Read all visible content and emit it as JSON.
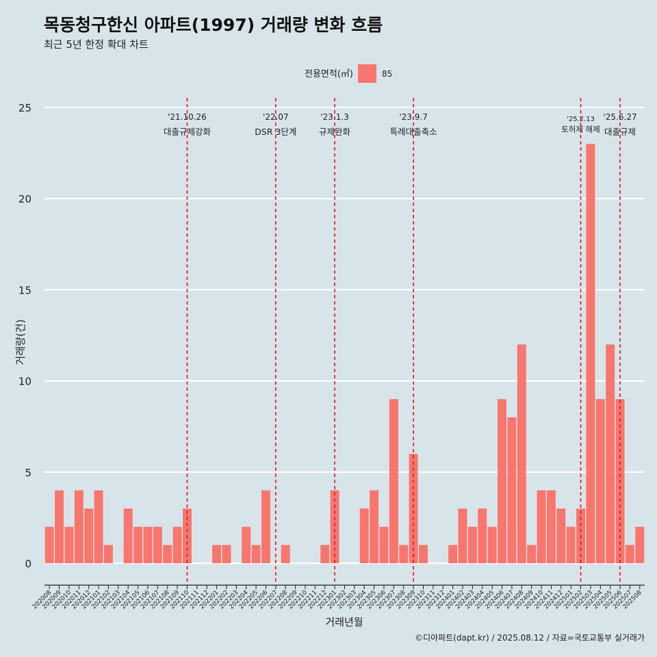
{
  "chart_data": {
    "type": "bar",
    "title": "목동청구한신 아파트(1997) 거래량 변화 흐름",
    "subtitle": "최근 5년 한정 확대 차트",
    "xlabel": "거래년월",
    "ylabel": "거래량(건)",
    "ylim": [
      0,
      25
    ],
    "yticks": [
      0,
      5,
      10,
      15,
      20,
      25
    ],
    "grid": true,
    "legend": {
      "title": "전용면적(㎡)",
      "placement": "top-center",
      "entries": [
        {
          "label": "85",
          "color": "#f8766d"
        }
      ]
    },
    "categories": [
      "202008",
      "202009",
      "202010",
      "202011",
      "202012",
      "202101",
      "202102",
      "202103",
      "202104",
      "202105",
      "202106",
      "202107",
      "202108",
      "202109",
      "202110",
      "202111",
      "202112",
      "202201",
      "202202",
      "202203",
      "202204",
      "202205",
      "202206",
      "202207",
      "202208",
      "202209",
      "202210",
      "202211",
      "202212",
      "202301",
      "202302",
      "202303",
      "202304",
      "202305",
      "202306",
      "202307",
      "202308",
      "202309",
      "202310",
      "202311",
      "202312",
      "202401",
      "202402",
      "202403",
      "202404",
      "202405",
      "202406",
      "202407",
      "202408",
      "202409",
      "202410",
      "202411",
      "202412",
      "202501",
      "202502",
      "202503",
      "202504",
      "202505",
      "202506",
      "202507",
      "202508"
    ],
    "series": [
      {
        "name": "85",
        "color": "#f8766d",
        "values": [
          2,
          4,
          2,
          4,
          3,
          4,
          1,
          0,
          3,
          2,
          2,
          2,
          1,
          2,
          3,
          0,
          0,
          1,
          1,
          0,
          2,
          1,
          4,
          0,
          1,
          0,
          0,
          0,
          1,
          4,
          0,
          0,
          3,
          4,
          2,
          9,
          1,
          6,
          1,
          0,
          0,
          1,
          3,
          2,
          3,
          2,
          9,
          8,
          12,
          1,
          4,
          4,
          3,
          2,
          3,
          23,
          9,
          12,
          9,
          1,
          2
        ]
      }
    ],
    "annotations": [
      {
        "x": "202110",
        "date": "'21.10.26",
        "label": "대출규제강화"
      },
      {
        "x": "202207",
        "date": "'22.07",
        "label": "DSR 3단계"
      },
      {
        "x": "202301",
        "date": "'23.1.3",
        "label": "규제완화"
      },
      {
        "x": "202309",
        "date": "'23.9.7",
        "label": "특례대출축소"
      },
      {
        "x": "202502",
        "date": "'25.2.13",
        "label": "토허제 해제"
      },
      {
        "x": "202506",
        "date": "'25.6.27",
        "label": "대출규제"
      }
    ],
    "caption": "©디아파트(dapt.kr) / 2025.08.12 / 자료=국토교통부 실거래가"
  }
}
